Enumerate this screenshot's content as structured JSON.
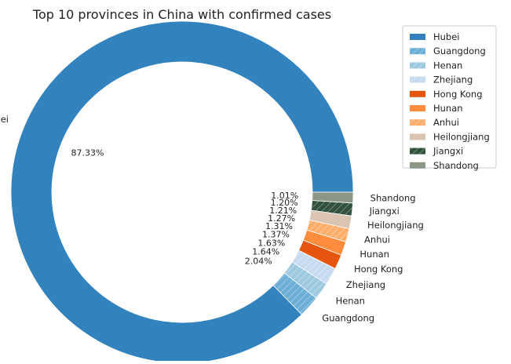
{
  "chart_data": {
    "type": "pie",
    "donut": true,
    "title": "Top 10 provinces in China with confirmed cases",
    "legend_position": "top-right",
    "slices": [
      {
        "label": "Hubei",
        "pct_label": "87.33%",
        "value": 87.33,
        "color": "#3182bd",
        "hatch": false
      },
      {
        "label": "Guangdong",
        "pct_label": "2.04%",
        "value": 2.04,
        "color": "#6baed6",
        "hatch": true
      },
      {
        "label": "Henan",
        "pct_label": "1.64%",
        "value": 1.64,
        "color": "#9ecae1",
        "hatch": true
      },
      {
        "label": "Zhejiang",
        "pct_label": "1.63%",
        "value": 1.63,
        "color": "#c6dbef",
        "hatch": true
      },
      {
        "label": "Hong Kong",
        "pct_label": "1.37%",
        "value": 1.37,
        "color": "#e6550d",
        "hatch": false
      },
      {
        "label": "Hunan",
        "pct_label": "1.31%",
        "value": 1.31,
        "color": "#fd8d3c",
        "hatch": false
      },
      {
        "label": "Anhui",
        "pct_label": "1.27%",
        "value": 1.27,
        "color": "#fdae6b",
        "hatch": true
      },
      {
        "label": "Heilongjiang",
        "pct_label": "1.21%",
        "value": 1.21,
        "color": "#d9c5b2",
        "hatch": false
      },
      {
        "label": "Jiangxi",
        "pct_label": "1.20%",
        "value": 1.2,
        "color": "#31503d",
        "hatch": true
      },
      {
        "label": "Shandong",
        "pct_label": "1.01%",
        "value": 1.01,
        "color": "#8c9886",
        "hatch": false
      }
    ]
  }
}
